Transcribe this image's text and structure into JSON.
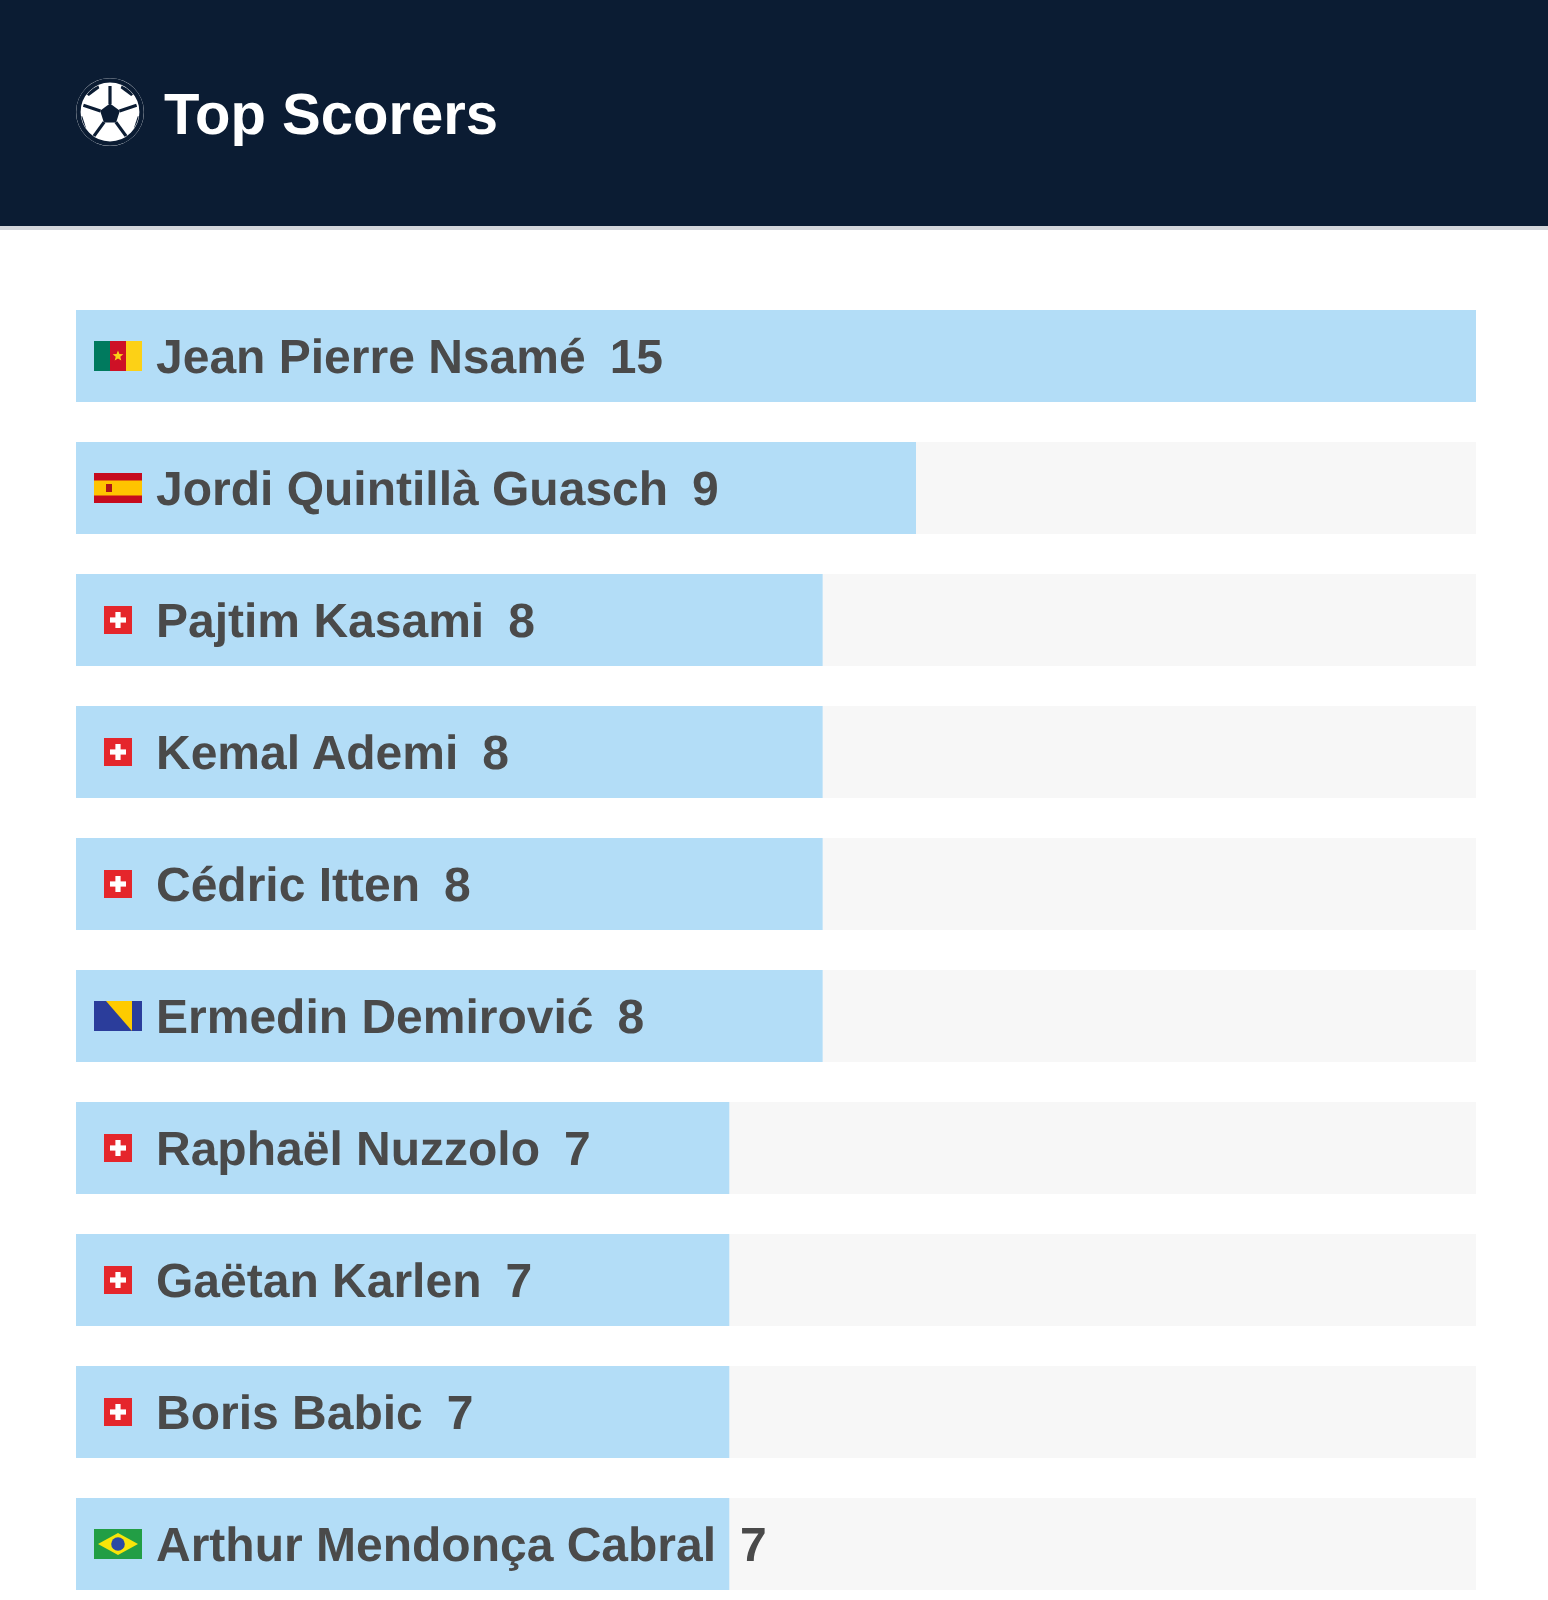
{
  "chart_data": {
    "type": "bar",
    "orientation": "horizontal",
    "title": "Top Scorers",
    "categories": [
      "Jean Pierre Nsamé",
      "Jordi Quintillà Guasch",
      "Pajtim Kasami",
      "Kemal Ademi",
      "Cédric Itten",
      "Ermedin Demirović",
      "Raphaël Nuzzolo",
      "Gaëtan Karlen",
      "Boris Babic",
      "Arthur Mendonça Cabral"
    ],
    "values": [
      15,
      9,
      8,
      8,
      8,
      8,
      7,
      7,
      7,
      7
    ],
    "color": "#b3ddf7",
    "data_labels": true
  }
}
